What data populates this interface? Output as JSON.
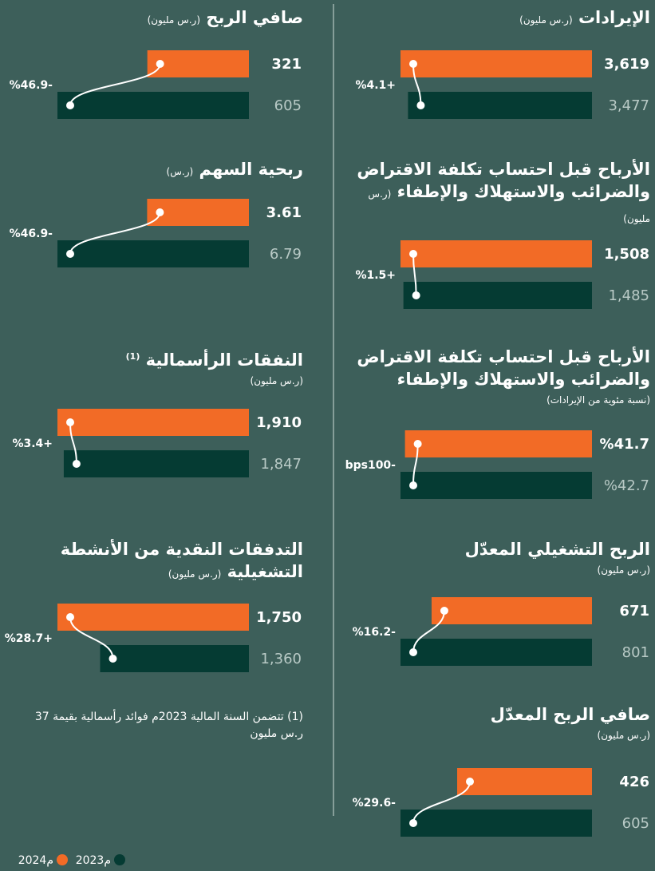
{
  "chart_data": [
    {
      "type": "bar",
      "title": "الإيرادات",
      "subtitle": "(ر.س مليون)",
      "values": [
        3619,
        3477
      ],
      "value_labels": [
        "3,619",
        "3,477"
      ],
      "change": "%4.1+"
    },
    {
      "type": "bar",
      "title": "الأرباح قبل احتساب تكلفة الاقتراض والضرائب والاستهلاك والإطفاء",
      "subtitle": "(ر.س مليون)",
      "values": [
        1508,
        1485
      ],
      "value_labels": [
        "1,508",
        "1,485"
      ],
      "change": "%1.5+"
    },
    {
      "type": "bar",
      "title": "الأرباح قبل احتساب تكلفة الاقتراض والضرائب والاستهلاك والإطفاء",
      "subtitle": "(نسبة مئوية من الإيرادات)",
      "values": [
        41.7,
        42.7
      ],
      "value_labels": [
        "%41.7",
        "%42.7"
      ],
      "change": "bps100-"
    },
    {
      "type": "bar",
      "title": "الربح التشغيلي المعدّل",
      "subtitle": "(ر.س مليون)",
      "values": [
        671,
        801
      ],
      "value_labels": [
        "671",
        "801"
      ],
      "change": "%16.2-"
    },
    {
      "type": "bar",
      "title": "صافي الربح المعدّل",
      "subtitle": "(ر.س مليون)",
      "values": [
        426,
        605
      ],
      "value_labels": [
        "426",
        "605"
      ],
      "change": "%29.6-"
    },
    {
      "type": "bar",
      "title": "صافي الربح",
      "subtitle": "(ر.س مليون)",
      "values": [
        321,
        605
      ],
      "value_labels": [
        "321",
        "605"
      ],
      "change": "%46.9-"
    },
    {
      "type": "bar",
      "title": "ربحية السهم",
      "subtitle": "(ر.س)",
      "values": [
        3.61,
        6.79
      ],
      "value_labels": [
        "3.61",
        "6.79"
      ],
      "change": "%46.9-"
    },
    {
      "type": "bar",
      "title": "النفقات الرأسمالية",
      "note": "(1)",
      "subtitle": "(ر.س مليون)",
      "values": [
        1910,
        1847
      ],
      "value_labels": [
        "1,910",
        "1,847"
      ],
      "change": "%3.4+"
    },
    {
      "type": "bar",
      "title": "التدفقات النقدية من الأنشطة التشغيلية",
      "subtitle": "(ر.س مليون)",
      "values": [
        1750,
        1360
      ],
      "value_labels": [
        "1,750",
        "1,360"
      ],
      "change": "%28.7+"
    }
  ],
  "legend": [
    {
      "name": "2024م",
      "color": "#f26b26"
    },
    {
      "name": "2023م",
      "color": "#053b33"
    }
  ],
  "footnote": "(1) تتضمن السنة المالية 2023م فوائد رأسمالية بقيمة 37 ر.س مليون"
}
